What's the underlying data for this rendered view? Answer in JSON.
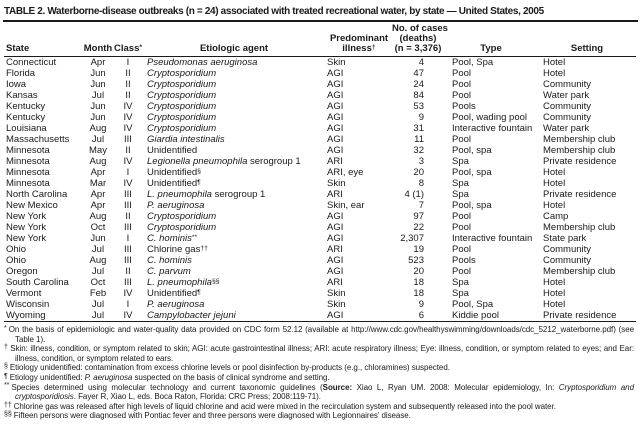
{
  "title": "TABLE 2. Waterborne-disease outbreaks (n = 24) associated with treated recreational water, by state — United States, 2005",
  "table": {
    "columns": [
      {
        "key": "state",
        "lines": [
          "State"
        ]
      },
      {
        "key": "month",
        "lines": [
          "Month"
        ]
      },
      {
        "key": "class",
        "lines": [
          "Class"
        ],
        "sup": "*"
      },
      {
        "key": "agent",
        "lines": [
          "Etiologic agent"
        ]
      },
      {
        "key": "illness",
        "lines": [
          "Predominant",
          "illness"
        ],
        "sup": "†"
      },
      {
        "key": "cases",
        "lines": [
          "No. of cases",
          "(deaths)",
          "(n = 3,376)"
        ]
      },
      {
        "key": "type",
        "lines": [
          "Type"
        ]
      },
      {
        "key": "setting",
        "lines": [
          "Setting"
        ]
      }
    ],
    "rows": [
      {
        "state": "Connecticut",
        "month": "Apr",
        "class": "I",
        "agent": [
          {
            "t": "Pseudomonas aeruginosa",
            "i": true
          }
        ],
        "illness": "Skin",
        "cases": "4",
        "type": "Pool, Spa",
        "setting": "Hotel"
      },
      {
        "state": "Florida",
        "month": "Jun",
        "class": "II",
        "agent": [
          {
            "t": "Cryptosporidium",
            "i": true
          }
        ],
        "illness": "AGI",
        "cases": "47",
        "type": "Pool",
        "setting": "Hotel"
      },
      {
        "state": "Iowa",
        "month": "Jun",
        "class": "II",
        "agent": [
          {
            "t": "Cryptosporidium",
            "i": true
          }
        ],
        "illness": "AGI",
        "cases": "24",
        "type": "Pool",
        "setting": "Community"
      },
      {
        "state": "Kansas",
        "month": "Jul",
        "class": "II",
        "agent": [
          {
            "t": "Cryptosporidium",
            "i": true
          }
        ],
        "illness": "AGI",
        "cases": "84",
        "type": "Pool",
        "setting": "Water park"
      },
      {
        "state": "Kentucky",
        "month": "Jun",
        "class": "IV",
        "agent": [
          {
            "t": "Cryptosporidium",
            "i": true
          }
        ],
        "illness": "AGI",
        "cases": "53",
        "type": "Pools",
        "setting": "Community"
      },
      {
        "state": "Kentucky",
        "month": "Jun",
        "class": "IV",
        "agent": [
          {
            "t": "Cryptosporidium",
            "i": true
          }
        ],
        "illness": "AGI",
        "cases": "9",
        "type": "Pool, wading pool",
        "setting": "Community"
      },
      {
        "state": "Louisiana",
        "month": "Aug",
        "class": "IV",
        "agent": [
          {
            "t": "Cryptosporidium",
            "i": true
          }
        ],
        "illness": "AGI",
        "cases": "31",
        "type": "Interactive fountain",
        "setting": "Water park"
      },
      {
        "state": "Massachusetts",
        "month": "Jul",
        "class": "III",
        "agent": [
          {
            "t": "Giardia intestinalis",
            "i": true
          }
        ],
        "illness": "AGI",
        "cases": "11",
        "type": "Pool",
        "setting": "Membership club"
      },
      {
        "state": "Minnesota",
        "month": "May",
        "class": "II",
        "agent": [
          {
            "t": "Unidentified"
          }
        ],
        "illness": "AGI",
        "cases": "32",
        "type": "Pool, spa",
        "setting": "Membership club"
      },
      {
        "state": "Minnesota",
        "month": "Aug",
        "class": "IV",
        "agent": [
          {
            "t": "Legionella pneumophila",
            "i": true
          },
          {
            "t": " serogroup 1"
          }
        ],
        "illness": "ARI",
        "cases": "3",
        "type": "Spa",
        "setting": "Private residence"
      },
      {
        "state": "Minnesota",
        "month": "Apr",
        "class": "I",
        "agent": [
          {
            "t": "Unidentified"
          },
          {
            "t": "§",
            "sup": true
          }
        ],
        "illness": "ARI, eye",
        "cases": "20",
        "type": "Pool, spa",
        "setting": "Hotel"
      },
      {
        "state": "Minnesota",
        "month": "Mar",
        "class": "IV",
        "agent": [
          {
            "t": "Unidentified"
          },
          {
            "t": "¶",
            "sup": true
          }
        ],
        "illness": "Skin",
        "cases": "8",
        "type": "Spa",
        "setting": "Hotel"
      },
      {
        "state": "North Carolina",
        "month": "Apr",
        "class": "III",
        "agent": [
          {
            "t": "L. pneumophila",
            "i": true
          },
          {
            "t": " serogroup 1"
          }
        ],
        "illness": "ARI",
        "cases": "4 (1)",
        "type": "Spa",
        "setting": "Private residence"
      },
      {
        "state": "New Mexico",
        "month": "Apr",
        "class": "III",
        "agent": [
          {
            "t": "P. aeruginosa",
            "i": true
          }
        ],
        "illness": "Skin, ear",
        "cases": "7",
        "type": "Pool, spa",
        "setting": "Hotel"
      },
      {
        "state": "New York",
        "month": "Aug",
        "class": "II",
        "agent": [
          {
            "t": "Cryptosporidium",
            "i": true
          }
        ],
        "illness": "AGI",
        "cases": "97",
        "type": "Pool",
        "setting": "Camp"
      },
      {
        "state": "New York",
        "month": "Oct",
        "class": "III",
        "agent": [
          {
            "t": "Cryptosporidium",
            "i": true
          }
        ],
        "illness": "AGI",
        "cases": "22",
        "type": "Pool",
        "setting": "Membership club"
      },
      {
        "state": "New York",
        "month": "Jun",
        "class": "I",
        "agent": [
          {
            "t": "C. hominis",
            "i": true
          },
          {
            "t": "**",
            "sup": true
          }
        ],
        "illness": "AGI",
        "cases": "2,307",
        "type": "Interactive fountain",
        "setting": "State park"
      },
      {
        "state": "Ohio",
        "month": "Jul",
        "class": "III",
        "agent": [
          {
            "t": "Chlorine gas"
          },
          {
            "t": "††",
            "sup": true
          }
        ],
        "illness": "ARI",
        "cases": "19",
        "type": "Pool",
        "setting": "Community"
      },
      {
        "state": "Ohio",
        "month": "Aug",
        "class": "III",
        "agent": [
          {
            "t": "C. hominis",
            "i": true
          }
        ],
        "illness": "AGI",
        "cases": "523",
        "type": "Pools",
        "setting": "Community"
      },
      {
        "state": "Oregon",
        "month": "Jul",
        "class": "II",
        "agent": [
          {
            "t": "C. parvum",
            "i": true
          }
        ],
        "illness": "AGI",
        "cases": "20",
        "type": "Pool",
        "setting": "Membership club"
      },
      {
        "state": "South Carolina",
        "month": "Oct",
        "class": "III",
        "agent": [
          {
            "t": "L. pneumophila",
            "i": true
          },
          {
            "t": "§§",
            "sup": true
          }
        ],
        "illness": "ARI",
        "cases": "18",
        "type": "Spa",
        "setting": "Hotel"
      },
      {
        "state": "Vermont",
        "month": "Feb",
        "class": "IV",
        "agent": [
          {
            "t": "Unidentified"
          },
          {
            "t": "¶",
            "sup": true
          }
        ],
        "illness": "Skin",
        "cases": "18",
        "type": "Spa",
        "setting": "Hotel"
      },
      {
        "state": "Wisconsin",
        "month": "Jul",
        "class": "I",
        "agent": [
          {
            "t": "P. aeruginosa",
            "i": true
          }
        ],
        "illness": "Skin",
        "cases": "9",
        "type": "Pool, Spa",
        "setting": "Hotel"
      },
      {
        "state": "Wyoming",
        "month": "Jul",
        "class": "IV",
        "agent": [
          {
            "t": "Campylobacter jejuni",
            "i": true
          }
        ],
        "illness": "AGI",
        "cases": "6",
        "type": "Kiddie pool",
        "setting": "Private residence"
      }
    ]
  },
  "footnotes": [
    {
      "marker": "*",
      "segments": [
        {
          "t": "On the basis of epidemiologic and water-quality data provided on CDC form 52.12 (available at http://www.cdc.gov/healthyswimming/downloads/cdc_5212_waterborne.pdf) (see Table 1)."
        }
      ]
    },
    {
      "marker": "†",
      "segments": [
        {
          "t": "Skin: illness, condition, or symptom related to skin; AGI: acute gastrointestinal illness; ARI: acute respiratory illness; Eye: illness, condition, or symptom related to eyes; and Ear: illness, condition, or symptom related to ears."
        }
      ]
    },
    {
      "marker": "§",
      "segments": [
        {
          "t": "Etiology unidentified: contamination from excess chlorine levels or pool disinfection by-products (e.g., chloramines) suspected."
        }
      ]
    },
    {
      "marker": "¶",
      "segments": [
        {
          "t": "Etiology unidentified: "
        },
        {
          "t": "P. aeruginosa",
          "i": true
        },
        {
          "t": " suspected on the basis of clinical syndrome and setting."
        }
      ]
    },
    {
      "marker": "**",
      "segments": [
        {
          "t": "Species determined using molecular technology and current taxonomic guidelines ("
        },
        {
          "t": "Source:",
          "b": true
        },
        {
          "t": " Xiao L, Ryan UM. 2008: Molecular epidemiology, In: "
        },
        {
          "t": "Cryptosporidium and cryptosporidiosis",
          "i": true
        },
        {
          "t": ". Fayer R, Xiao L, eds. Boca Raton, Florida: CRC Press; 2008:119-71)."
        }
      ]
    },
    {
      "marker": "††",
      "segments": [
        {
          "t": "Chlorine gas was released after high levels of liquid chlorine and acid were mixed in the recirculation system and subsequently released into the pool water."
        }
      ]
    },
    {
      "marker": "§§",
      "segments": [
        {
          "t": "Fifteen persons were diagnosed with Pontiac fever and three persons were diagnosed with Legionnaires' disease."
        }
      ]
    }
  ]
}
